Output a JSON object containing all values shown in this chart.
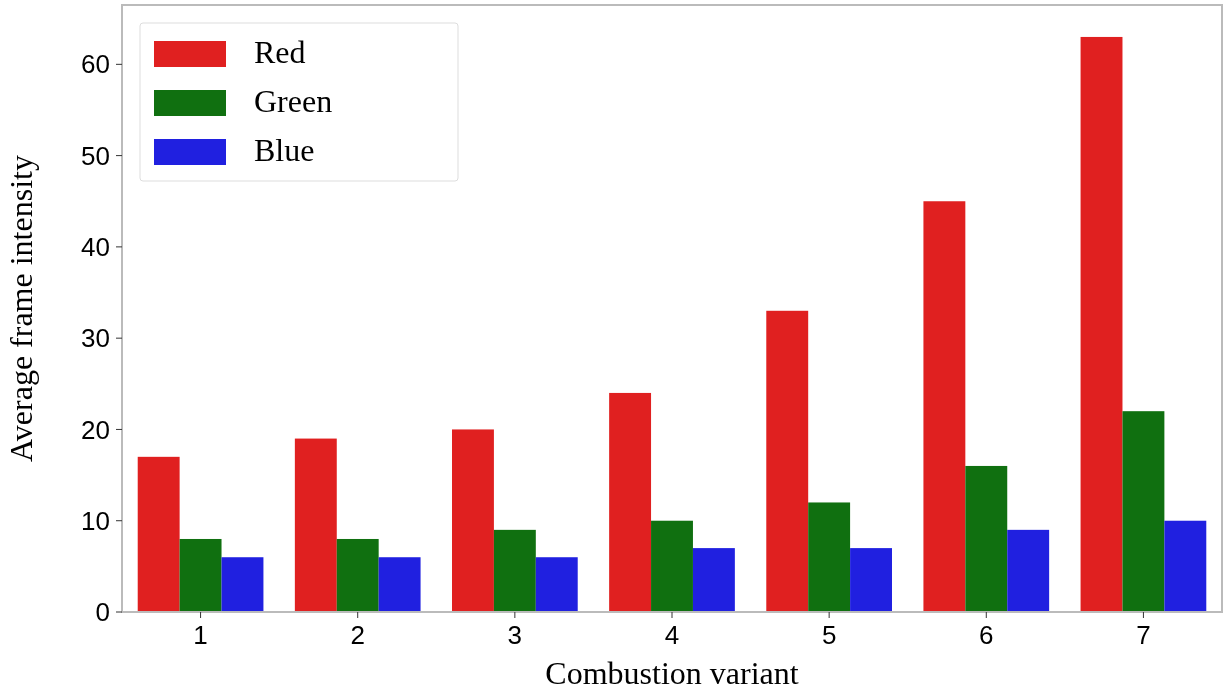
{
  "chart_data": {
    "type": "bar",
    "xlabel": "Combustion variant",
    "ylabel": "Average frame intensity",
    "categories": [
      "1",
      "2",
      "3",
      "4",
      "5",
      "6",
      "7"
    ],
    "series": [
      {
        "name": "Red",
        "color": "#e02020",
        "values": [
          17,
          19,
          20,
          24,
          33,
          45,
          63
        ]
      },
      {
        "name": "Green",
        "color": "#107010",
        "values": [
          8,
          8,
          9,
          10,
          12,
          16,
          22
        ]
      },
      {
        "name": "Blue",
        "color": "#2020e0",
        "values": [
          6,
          6,
          6,
          7,
          7,
          9,
          10
        ]
      }
    ],
    "ylim": [
      0,
      66.5
    ],
    "yticks": [
      0,
      10,
      20,
      30,
      40,
      50,
      60
    ],
    "grid": false,
    "legend": "top left"
  }
}
